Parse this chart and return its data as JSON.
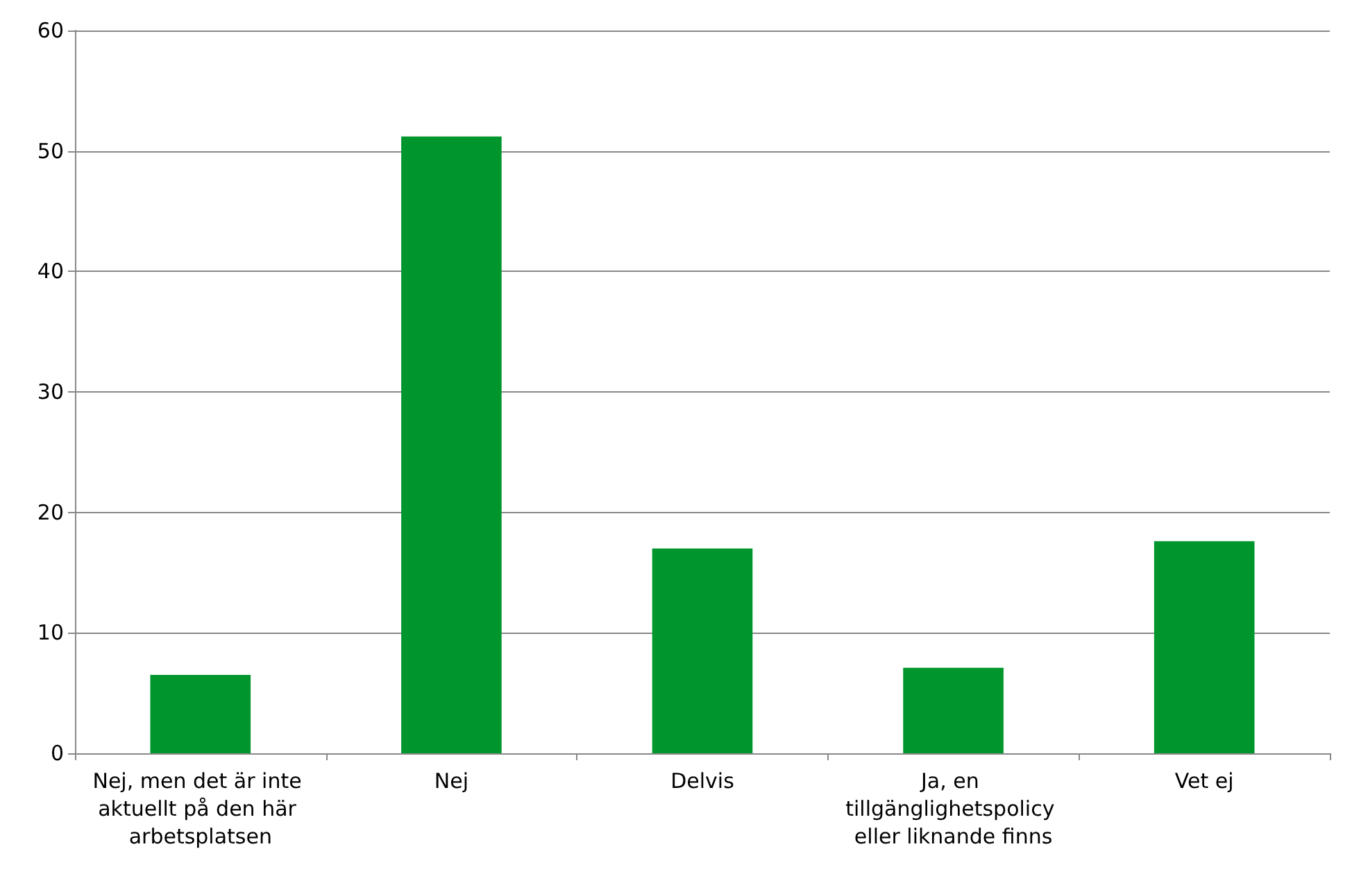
{
  "chart_data": {
    "type": "bar",
    "categories": [
      "Nej, men det är inte aktuellt på den här arbetsplatsen",
      "Nej",
      "Delvis",
      "Ja, en tillgänglighetspolicy eller liknande finns",
      "Vet ej"
    ],
    "values": [
      6.5,
      51.2,
      17.0,
      7.1,
      17.6
    ],
    "color": "#00962d",
    "ylim": [
      0,
      60
    ],
    "yticks": [
      0,
      10,
      20,
      30,
      40,
      50,
      60
    ],
    "grid": "y"
  }
}
